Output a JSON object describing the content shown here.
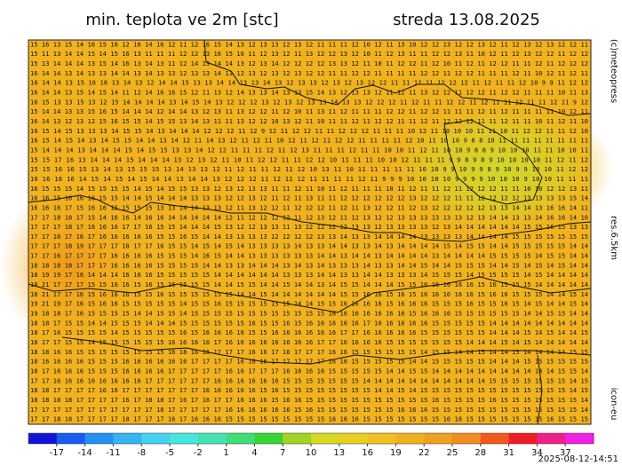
{
  "title": "min. teplota ve 2m [stc]",
  "date": "streda 13.08.2025",
  "copyright": "(c)meteopress",
  "resolution": "res.6.5km",
  "model": "icon-eu",
  "timestamp": "2025-08-12-14:51",
  "grid_rows": [
    "15 16 13 15 14 16 15 16 12 16 14 16 12 11 12 16 15 14 13 12 13 13 12 13 12 11 11 11 12 10 12 11 13 10 12 12 13 12 12 13 12 11 12 13 12 13 12 12 11",
    "15 11 13 14 14 15 14 15 16 13 11 11 11 12 12 13 16 15 16 11 12 13 12 11 13 12 12 13 12 10 11 12 13 11 11 12 12 13 11 10 12 11 12 13 12 12 11 12 12",
    "15 13 14 14 14 13 15 14 16 13 14 13 11 12 14 13 14 14 13 12 13 14 12 12 12 12 13 13 12 11 10 11 12 12 11 12 10 11 12 11 12 12 11 11 12 11 12 12 12",
    "16 14 14 13 14 13 13 14 14 13 14 13 13 12 13 13 14 13 12 13 12 13 12 13 12 12 11 11 12 12 11 11 11 11 12 12 11 12 12 11 11 11 12 11 10 12 11 12 11",
    "16 14 14 13 15 16 16 13 14 13 12 14 14 15 13 13 14 14 13 13 14 13 12 13 13 12 13 12 13 12 12 11 11 12 11 12 12 12 11 12 11 11 12 10 9 9 11 12 12",
    "16 14 14 13 15 14 15 14 11 12 14 16 16 15 12 11 13 12 14 13 13 14 13 13 15 14 13 12 13 13 12 11 12 11 13 12 12 11 12 12 11 12 12 11 11 11 10 11 13",
    "16 15 13 13 15 13 12 15 14 14 14 14 13 14 15 14 13 12 12 12 13 12 13 12 13 13 14 13 13 12 12 12 11 12 11 11 12 12 11 12 11 11 12 11 11 12 11 9 12",
    "15 14 14 13 13 15 16 15 14 14 14 12 14 14 13 12 13 11 13 12 12 11 12 10 11 13 11 12 11 11 11 12 12 11 12 12 11 11 11 12 11 12 11 11 11 11 10 12 11",
    "16 14 13 12 13 12 15 16 15 15 14 15 15 13 14 13 11 11 13 12 12 10 13 12 11 10 11 11 12 11 12 12 11 11 12 11 12 12 12 11 11 12 11 11 10 11 12 11 10",
    "16 15 14 15 13 13 13 14 15 15 14 13 14 14 14 12 12 12 11 12 9 12 11 12 12 11 11 12 12 12 11 11 11 10 12 11 10 10 10 11 11 10 11 12 12 11 11 12 10",
    "16 15 14 15 14 13 14 15 15 14 14 13 14 12 11 14 13 12 11 12 11 10 12 11 12 11 12 12 11 11 11 11 12 10 11 10 10 9 8 8 10 11 11 11 11 11 11 11 11",
    "15 14 14 14 13 14 14 14 15 14 15 15 13 13 14 12 12 11 11 11 12 11 12 13 11 11 11 12 11 11 10 10 11 12 11 10 10 9 8 8 9 10 10 10 11 11 10 10 11",
    "15 15 17 16 13 14 14 14 15 14 14 14 13 12 13 12 11 10 11 12 12 11 11 12 12 10 11 11 11 10 10 12 11 11 11 9 9 8 9 8 9 10 10 10 10 11 12 11 12",
    "15 15 16 16 15 13 14 13 15 15 15 13 14 13 13 12 11 12 11 11 12 11 12 10 13 11 10 11 11 11 11 11 10 10 9 9 10 9 9 8 9 10 9 9 10 10 11 12 12",
    "16 16 16 16 14 15 14 15 14 15 14 14 13 14 14 13 12 12 12 11 12 11 12 11 11 11 11 12 11 9 9 9 10 10 10 10 9 9 9 9 10 10 10 9 10 10 11 11 11",
    "16 15 15 15 14 15 15 15 15 14 15 14 15 15 13 13 12 13 12 13 13 11 11 12 11 10 11 12 11 11 11 10 11 12 11 11 12 11 12 12 12 11 11 10 10 12 12 13 11",
    "16 16 15 16 16 16 15 15 14 14 15 14 14 14 13 13 13 12 12 13 12 11 12 11 13 11 11 12 12 12 12 12 12 13 12 12 12 11 11 12 12 12 12 13 13 13 13 15 14",
    "16 16 16 17 15 16 16 15 15 15 15 13 13 14 14 13 13 12 11 13 12 12 11 12 12 12 11 12 11 13 12 12 11 12 13 12 12 12 12 12 13 13 14 14 13 16 16 14 11",
    "17 17 18 18 17 15 14 16 16 14 16 16 14 14 14 14 14 12 11 12 12 12 12 11 12 13 12 11 12 13 12 12 13 13 13 13 13 13 12 13 14 14 13 13 14 16 16 14 10",
    "17 17 17 18 17 16 16 16 17 17 16 15 15 14 14 14 15 13 12 12 13 13 11 13 12 12 12 12 13 13 12 13 13 13 13 12 13 14 14 14 14 14 14 15 15 16 15 13 13",
    "17 17 16 17 16 17 16 16 16 16 16 15 15 16 15 14 14 13 13 13 13 12 12 12 12 13 13 14 13 13 14 14 14 14 13 13 13 13 14 14 14 14 15 15 15 15 15 15 15",
    "17 17 17 18 19 17 17 17 18 17 17 16 15 15 14 15 14 15 14 13 13 13 13 14 13 13 14 14 13 13 14 13 14 14 14 14 15 14 15 15 14 14 15 15 15 15 15 14 14",
    "17 17 16 17 17 17 17 16 16 16 16 15 15 15 14 16 15 14 14 13 13 13 13 13 13 14 14 13 14 14 13 14 14 14 14 13 14 14 14 14 15 15 15 15 14 15 15 14 14",
    "18 18 18 18 17 17 17 16 16 16 16 15 15 15 15 14 14 13 13 14 14 14 13 14 13 14 13 13 13 14 13 13 14 14 15 14 14 15 15 15 14 14 15 14 15 14 15 14 14",
    "18 19 19 17 16 14 14 14 16 16 16 15 15 15 15 15 14 14 14 14 14 14 13 13 13 14 14 13 13 14 14 13 13 13 14 15 15 15 14 15 15 15 15 14 15 14 14 14 14",
    "18 21 17 17 17 15 15 16 16 15 16 15 16 15 15 15 14 14 15 15 14 14 15 14 14 13 14 15 15 14 14 14 15 15 16 16 16 16 16 15 16 15 15 15 14 14 14 14 14",
    "18 21 17 17 16 15 16 16 16 15 15 16 15 15 15 15 15 15 14 14 15 14 14 14 14 14 14 15 15 16 16 15 16 15 16 16 16 16 16 15 16 16 15 15 15 14 14 15 14",
    "19 21 19 17 16 15 16 16 15 15 15 15 15 14 15 15 16 15 15 15 15 15 15 14 14 15 15 16 16 16 16 15 16 16 16 15 15 15 16 15 15 16 15 14 15 14 14 15 14",
    "19 18 18 17 16 15 15 15 15 14 14 15 15 14 15 15 15 15 15 15 15 15 15 15 15 15 16 16 16 16 16 16 16 15 16 16 16 15 15 15 15 15 15 14 14 15 15 14 14",
    "18 18 17 15 15 14 14 15 15 15 14 14 14 15 15 15 15 15 15 16 15 15 16 15 16 16 16 16 16 17 16 16 16 16 16 15 15 15 15 15 14 14 14 14 14 14 14 14 14",
    "18 17 16 15 15 15 15 14 15 15 15 15 15 16 15 16 16 16 16 15 15 16 16 16 16 16 16 17 17 16 16 16 16 16 15 15 15 15 15 15 14 14 14 15 14 15 14 14 15",
    "18 17 17 15 15 14 15 15 15 15 15 15 16 16 16 16 17 16 16 16 16 16 16 16 16 17 17 16 16 16 16 15 15 15 15 15 15 15 14 14 14 15 14 15 14 14 14 14 14",
    "18 18 16 16 15 15 15 15 15 15 15 15 16 18 16 16 17 17 17 16 16 17 16 17 17 17 16 16 15 15 15 15 15 15 14 15 15 14 14 15 14 14 15 14 14 14 14 15 15",
    "18 16 16 16 16 15 15 15 16 16 16 16 16 16 17 17 17 17 16 16 16 17 17 17 17 17 16 16 15 15 15 15 15 14 14 15 15 15 15 15 14 14 14 15 15 15 15 15 15",
    "18 17 16 16 16 15 15 15 16 16 16 16 17 17 17 17 17 16 16 17 17 17 16 16 16 16 15 15 15 15 15 14 14 15 15 14 14 14 14 14 14 14 14 14 14 14 15 15 14",
    "17 17 16 16 16 16 16 16 16 16 17 17 17 17 17 17 16 16 16 16 16 16 15 15 15 15 15 15 15 14 14 14 14 14 14 14 14 14 14 14 15 15 15 15 15 15 15 14 15",
    "18 18 17 17 17 17 16 16 17 17 17 17 17 17 17 16 16 16 16 16 15 16 15 15 15 15 15 15 15 15 14 14 15 14 15 15 15 15 15 15 15 15 15 15 15 15 15 14 15",
    "18 18 18 18 17 17 17 17 16 17 18 18 17 16 17 16 17 17 16 16 16 15 16 16 15 15 15 15 15 15 15 15 15 15 15 16 15 15 15 15 16 15 15 15 15 15 15 15 14",
    "17 17 17 17 17 17 17 17 17 17 17 18 17 17 17 17 17 16 16 16 16 16 16 15 16 15 15 15 15 15 15 15 16 16 16 15 15 15 15 15 15 15 15 15 15 15 15 15 14",
    "17 17 18 18 17 17 17 17 18 17 17 17 16 17 16 16 16 15 15 15 15 15 15 15 15 15 16 16 16 15 15 15 15 15 15 15 16 16 15 15 15 15 15 15 15 16 15 15 15"
  ],
  "colorbar": {
    "lim": [
      -20,
      40
    ],
    "ticks": [
      -17,
      -14,
      -11,
      -8,
      -5,
      -2,
      1,
      4,
      7,
      10,
      13,
      16,
      19,
      22,
      25,
      28,
      31,
      34,
      37
    ],
    "colors": [
      "#1414d8",
      "#1a5cf0",
      "#2490f2",
      "#34b4f2",
      "#44d2f0",
      "#48e6e0",
      "#44e2b2",
      "#40de74",
      "#38d434",
      "#a4d224",
      "#d8d824",
      "#e8d020",
      "#f0c020",
      "#f0b020",
      "#f0a020",
      "#f08c20",
      "#f05a20",
      "#f01e24",
      "#f0208a",
      "#f020e4"
    ]
  }
}
